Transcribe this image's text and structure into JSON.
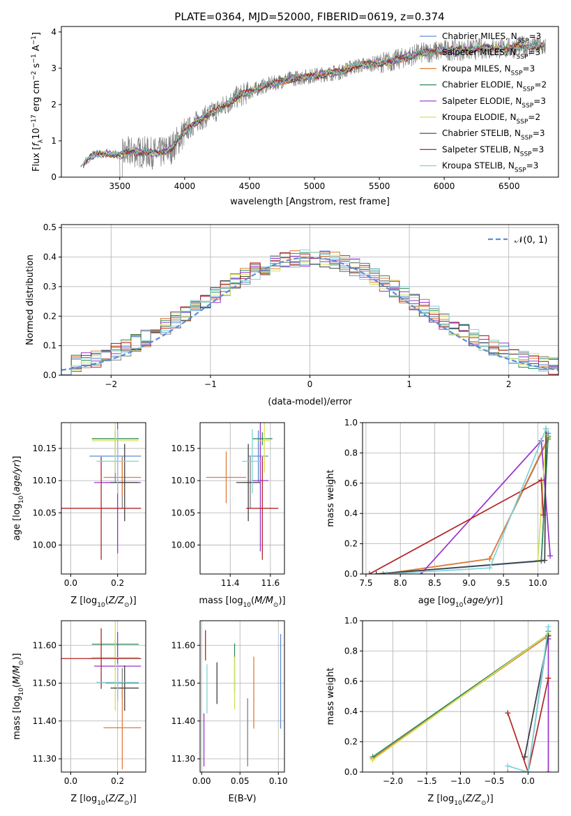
{
  "figure_title": "PLATE=0364, MJD=52000, FIBERID=0619, z=0.374",
  "models": [
    {
      "name": "Chabrier MILES, N$_{SSP}$=3",
      "color": "#5b8dd6",
      "short": "Chabrier MILES",
      "nssp": "3"
    },
    {
      "name": "Salpeter MILES, N$_{SSP}$=3",
      "color": "#808080",
      "short": "Salpeter MILES",
      "nssp": "3"
    },
    {
      "name": "Kroupa MILES, N$_{SSP}$=3",
      "color": "#e07b39",
      "short": "Kroupa MILES",
      "nssp": "3"
    },
    {
      "name": "Chabrier ELODIE, N$_{SSP}$=2",
      "color": "#2e8b57",
      "short": "Chabrier ELODIE",
      "nssp": "2"
    },
    {
      "name": "Salpeter ELODIE, N$_{SSP}$=3",
      "color": "#9932cc",
      "short": "Salpeter ELODIE",
      "nssp": "3"
    },
    {
      "name": "Kroupa ELODIE, N$_{SSP}$=2",
      "color": "#d4e157",
      "short": "Kroupa ELODIE",
      "nssp": "2"
    },
    {
      "name": "Chabrier STELIB, N$_{SSP}$=3",
      "color": "#404040",
      "short": "Chabrier STELIB",
      "nssp": "3"
    },
    {
      "name": "Salpeter STELIB, N$_{SSP}$=3",
      "color": "#b22222",
      "short": "Salpeter STELIB",
      "nssp": "3"
    },
    {
      "name": "Kroupa STELIB, N$_{SSP}$=3",
      "color": "#7fd3d8",
      "short": "Kroupa STELIB",
      "nssp": "3"
    }
  ],
  "chart_data": [
    {
      "id": "spectrum",
      "type": "line",
      "xlabel": "wavelength [Angstrom, rest frame]",
      "ylabel": "Flux [f_λ10^-17 erg cm^-2 s^-1 A^-1]",
      "xlim": [
        3050,
        6880
      ],
      "ylim": [
        0,
        4.15
      ],
      "xticks": [
        3500,
        4000,
        4500,
        5000,
        5500,
        6000,
        6500
      ],
      "yticks": [
        0,
        1,
        2,
        3,
        4
      ],
      "continuum": {
        "x": [
          3200,
          3300,
          3400,
          3500,
          3600,
          3700,
          3800,
          3900,
          4000,
          4100,
          4200,
          4300,
          4400,
          4500,
          4600,
          4700,
          4800,
          4900,
          5000,
          5100,
          5200,
          5300,
          5400,
          5500,
          5600,
          5700,
          5800,
          5900,
          6000,
          6100,
          6200,
          6300,
          6400,
          6500,
          6600,
          6700,
          6780
        ],
        "y": [
          0.3,
          0.62,
          0.65,
          0.6,
          0.7,
          0.68,
          0.65,
          0.8,
          1.25,
          1.55,
          1.75,
          1.95,
          2.2,
          2.35,
          2.5,
          2.6,
          2.7,
          2.75,
          2.8,
          2.85,
          2.9,
          3.05,
          3.1,
          3.15,
          3.2,
          3.3,
          3.4,
          3.45,
          3.5,
          3.5,
          3.5,
          3.55,
          3.55,
          3.55,
          3.6,
          3.6,
          3.6
        ]
      },
      "legend_position": "upper right"
    },
    {
      "id": "residuals",
      "type": "histogram",
      "xlabel": "(data-model)/error",
      "ylabel": "Normed distribution",
      "xlim": [
        -2.5,
        2.5
      ],
      "ylim": [
        0,
        0.51
      ],
      "xticks": [
        -2,
        -1,
        0,
        1,
        2
      ],
      "yticks": [
        0.0,
        0.1,
        0.2,
        0.3,
        0.4,
        0.5
      ],
      "bin_width": 0.1,
      "reference_curve": "N(0,1)",
      "legend_entry": "𝒩(0, 1)",
      "legend_position": "upper right"
    },
    {
      "id": "age_vs_Z",
      "type": "errorbar",
      "xlabel": "Z [log10(Z/Z⊙)]",
      "ylabel": "age  [log10(age/yr)]",
      "xlim": [
        -0.04,
        0.32
      ],
      "ylim": [
        9.955,
        10.19
      ],
      "xticks": [
        0.0,
        0.2
      ],
      "yticks": [
        10.0,
        10.05,
        10.1,
        10.15
      ],
      "points": [
        {
          "x": 0.19,
          "xerr": 0.11,
          "y": 10.138,
          "yerr": 0.04
        },
        {
          "x": 0.22,
          "xerr": 0.07,
          "y": 10.097,
          "yerr": 0.04
        },
        {
          "x": 0.22,
          "xerr": 0.08,
          "y": 10.105,
          "yerr": 0.03
        },
        {
          "x": 0.19,
          "xerr": 0.1,
          "y": 10.165,
          "yerr": 0.01
        },
        {
          "x": 0.2,
          "xerr": 0.1,
          "y": 10.097,
          "yerr": 0.11
        },
        {
          "x": 0.19,
          "xerr": 0.1,
          "y": 10.162,
          "yerr": 0.05
        },
        {
          "x": 0.23,
          "xerr": 0.06,
          "y": 10.097,
          "yerr": 0.06
        },
        {
          "x": 0.13,
          "xerr": 0.17,
          "y": 10.057,
          "yerr": 0.08
        },
        {
          "x": 0.2,
          "xerr": 0.09,
          "y": 10.13,
          "yerr": 0.05
        }
      ]
    },
    {
      "id": "age_vs_mass",
      "type": "errorbar",
      "xlabel": "mass [log10(M/M⊙)]",
      "ylabel": "",
      "xlim": [
        11.25,
        11.67
      ],
      "ylim": [
        9.955,
        10.19
      ],
      "xticks": [
        11.4,
        11.6
      ],
      "yticks": [
        10.0,
        10.05,
        10.1,
        10.15
      ],
      "points": [
        {
          "x": 11.54,
          "xerr": 0.05,
          "y": 10.138,
          "yerr": 0.04
        },
        {
          "x": 11.5,
          "xerr": 0.04,
          "y": 10.097,
          "yerr": 0.04
        },
        {
          "x": 11.38,
          "xerr": 0.1,
          "y": 10.105,
          "yerr": 0.04
        },
        {
          "x": 11.56,
          "xerr": 0.05,
          "y": 10.165,
          "yerr": 0.01
        },
        {
          "x": 11.55,
          "xerr": 0.04,
          "y": 10.1,
          "yerr": 0.11
        },
        {
          "x": 11.57,
          "xerr": 0.03,
          "y": 10.162,
          "yerr": 0.05
        },
        {
          "x": 11.49,
          "xerr": 0.06,
          "y": 10.097,
          "yerr": 0.06
        },
        {
          "x": 11.56,
          "xerr": 0.08,
          "y": 10.057,
          "yerr": 0.08
        },
        {
          "x": 11.51,
          "xerr": 0.05,
          "y": 10.13,
          "yerr": 0.05
        }
      ]
    },
    {
      "id": "massweight_vs_age",
      "type": "line",
      "xlabel": "age  [log10(age/yr)]",
      "ylabel": "mass weight",
      "xlim": [
        7.45,
        10.3
      ],
      "ylim": [
        0,
        1.0
      ],
      "xticks": [
        7.5,
        8.0,
        8.5,
        9.0,
        9.5,
        10.0
      ],
      "yticks": [
        0.0,
        0.2,
        0.4,
        0.6,
        0.8,
        1.0
      ],
      "series": [
        {
          "x": [
            7.65,
            10.05,
            10.15
          ],
          "y": [
            0.0,
            0.085,
            0.93
          ]
        },
        {
          "x": [
            7.75,
            9.3,
            10.15
          ],
          "y": [
            0.0,
            0.1,
            0.89
          ]
        },
        {
          "x": [
            7.75,
            9.3,
            10.15
          ],
          "y": [
            0.0,
            0.1,
            0.9
          ]
        },
        {
          "x": [
            10.05,
            10.15
          ],
          "y": [
            0.09,
            0.91
          ]
        },
        {
          "x": [
            8.3,
            10.05,
            10.18
          ],
          "y": [
            0.0,
            0.88,
            0.12
          ]
        },
        {
          "x": [
            10.0,
            10.12
          ],
          "y": [
            0.09,
            0.91
          ]
        },
        {
          "x": [
            7.65,
            10.1,
            10.12
          ],
          "y": [
            0.0,
            0.09,
            0.96
          ]
        },
        {
          "x": [
            7.55,
            10.05,
            10.08
          ],
          "y": [
            0.0,
            0.62,
            0.39
          ]
        },
        {
          "x": [
            7.8,
            9.3,
            10.12
          ],
          "y": [
            0.0,
            0.04,
            0.96
          ]
        }
      ]
    },
    {
      "id": "mass_vs_Z",
      "type": "errorbar",
      "xlabel": "Z [log10(Z/Z⊙)]",
      "ylabel": "mass [log10(M/M⊙)]",
      "xlim": [
        -0.04,
        0.32
      ],
      "ylim": [
        11.265,
        11.665
      ],
      "xticks": [
        0.0,
        0.2
      ],
      "yticks": [
        11.3,
        11.4,
        11.5,
        11.6
      ],
      "points": [
        {
          "x": 0.19,
          "xerr": 0.11,
          "y": 11.565,
          "yerr": 0.03
        },
        {
          "x": 0.22,
          "xerr": 0.07,
          "y": 11.5,
          "yerr": 0.04
        },
        {
          "x": 0.22,
          "xerr": 0.08,
          "y": 11.382,
          "yerr": 0.11
        },
        {
          "x": 0.19,
          "xerr": 0.1,
          "y": 11.603,
          "yerr": 0.01
        },
        {
          "x": 0.2,
          "xerr": 0.1,
          "y": 11.545,
          "yerr": 0.09
        },
        {
          "x": 0.19,
          "xerr": 0.1,
          "y": 11.568,
          "yerr": 0.14
        },
        {
          "x": 0.23,
          "xerr": 0.06,
          "y": 11.487,
          "yerr": 0.06
        },
        {
          "x": 0.13,
          "xerr": 0.17,
          "y": 11.565,
          "yerr": 0.08
        },
        {
          "x": 0.2,
          "xerr": 0.09,
          "y": 11.502,
          "yerr": 0.05
        }
      ]
    },
    {
      "id": "mass_vs_EBV",
      "type": "errorbar",
      "xlabel": "E(B-V)",
      "ylabel": "",
      "xlim": [
        -0.002,
        0.108
      ],
      "ylim": [
        11.265,
        11.665
      ],
      "xticks": [
        0.0,
        0.05,
        0.1
      ],
      "yticks": [
        11.3,
        11.4,
        11.5,
        11.6
      ],
      "points": [
        {
          "x": 0.103,
          "xerr": 0,
          "y": 11.505,
          "yerr": 0.125
        },
        {
          "x": 0.06,
          "xerr": 0,
          "y": 11.37,
          "yerr": 0.09
        },
        {
          "x": 0.068,
          "xerr": 0,
          "y": 11.475,
          "yerr": 0.095
        },
        {
          "x": 0.043,
          "xerr": 0,
          "y": 11.54,
          "yerr": 0.065
        },
        {
          "x": 0.003,
          "xerr": 0,
          "y": 11.35,
          "yerr": 0.07
        },
        {
          "x": 0.043,
          "xerr": 0,
          "y": 11.5,
          "yerr": 0.07
        },
        {
          "x": 0.02,
          "xerr": 0,
          "y": 11.5,
          "yerr": 0.055
        },
        {
          "x": 0.005,
          "xerr": 0,
          "y": 11.6,
          "yerr": 0.04
        },
        {
          "x": 0.007,
          "xerr": 0,
          "y": 11.485,
          "yerr": 0.065
        }
      ]
    },
    {
      "id": "massweight_vs_Z",
      "type": "line",
      "xlabel": "Z [log10(Z/Z⊙)]",
      "ylabel": "mass weight",
      "xlim": [
        -2.45,
        0.45
      ],
      "ylim": [
        0,
        1.0
      ],
      "xticks": [
        -2.0,
        -1.5,
        -1.0,
        -0.5,
        0.0
      ],
      "yticks": [
        0.0,
        0.2,
        0.4,
        0.6,
        0.8,
        1.0
      ],
      "series": [
        {
          "x": [
            -0.3,
            0.0,
            0.3
          ],
          "y": [
            0.0,
            0.0,
            0.93
          ]
        },
        {
          "x": [
            -0.05,
            0.3
          ],
          "y": [
            0.1,
            0.9
          ]
        },
        {
          "x": [
            -2.3,
            0.3
          ],
          "y": [
            0.09,
            0.9
          ]
        },
        {
          "x": [
            -2.3,
            0.3
          ],
          "y": [
            0.1,
            0.91
          ]
        },
        {
          "x": [
            0.3,
            0.3
          ],
          "y": [
            0.0,
            0.88
          ]
        },
        {
          "x": [
            -2.3,
            0.3
          ],
          "y": [
            0.08,
            0.91
          ]
        },
        {
          "x": [
            -0.05,
            0.3
          ],
          "y": [
            0.1,
            0.9
          ]
        },
        {
          "x": [
            -0.3,
            0.0,
            0.3
          ],
          "y": [
            0.39,
            0.0,
            0.62
          ]
        },
        {
          "x": [
            -0.3,
            0.0,
            0.3
          ],
          "y": [
            0.04,
            0.0,
            0.96
          ]
        }
      ]
    }
  ]
}
